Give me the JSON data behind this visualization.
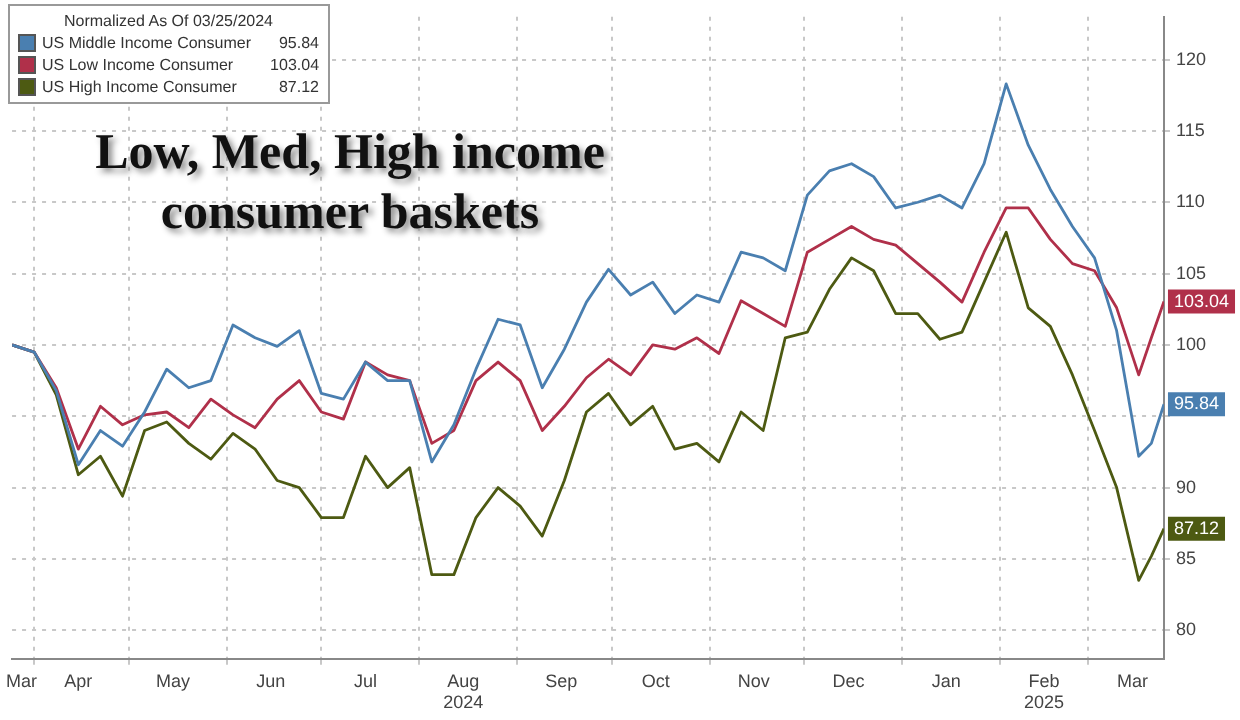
{
  "chart_data": {
    "type": "line",
    "title": "Low, Med, High income consumer baskets",
    "legend_title": "Normalized As Of 03/25/2024",
    "x": [
      "2024-03-25",
      "2024-04-01",
      "2024-04-08",
      "2024-04-15",
      "2024-04-22",
      "2024-04-29",
      "2024-05-06",
      "2024-05-13",
      "2024-05-20",
      "2024-05-27",
      "2024-06-03",
      "2024-06-10",
      "2024-06-17",
      "2024-06-24",
      "2024-07-01",
      "2024-07-08",
      "2024-07-15",
      "2024-07-22",
      "2024-07-29",
      "2024-08-05",
      "2024-08-12",
      "2024-08-19",
      "2024-08-26",
      "2024-09-02",
      "2024-09-09",
      "2024-09-16",
      "2024-09-23",
      "2024-09-30",
      "2024-10-07",
      "2024-10-14",
      "2024-10-21",
      "2024-10-28",
      "2024-11-04",
      "2024-11-11",
      "2024-11-18",
      "2024-11-25",
      "2024-12-02",
      "2024-12-09",
      "2024-12-16",
      "2024-12-23",
      "2024-12-30",
      "2025-01-06",
      "2025-01-13",
      "2025-01-20",
      "2025-01-27",
      "2025-02-03",
      "2025-02-10",
      "2025-02-17",
      "2025-02-24",
      "2025-03-03",
      "2025-03-10",
      "2025-03-17",
      "2025-03-21",
      "2025-03-25"
    ],
    "series": [
      {
        "name": "US Middle Income Consumer",
        "color": "#4a7fb0",
        "values": [
          100,
          99.5,
          96.8,
          91.6,
          94,
          92.9,
          95.3,
          98.3,
          97,
          97.5,
          101.4,
          100.5,
          99.9,
          101,
          96.6,
          96.2,
          98.8,
          97.5,
          97.5,
          91.8,
          94.4,
          98.3,
          101.8,
          101.4,
          97,
          99.7,
          103,
          105.3,
          103.5,
          104.4,
          102.2,
          103.5,
          103,
          106.5,
          106.1,
          105.2,
          110.5,
          112.2,
          112.7,
          111.8,
          109.6,
          110,
          110.5,
          109.6,
          112.7,
          118.3,
          114,
          110.9,
          108.3,
          106.1,
          101,
          92.2,
          93.1,
          95.84
        ],
        "value_labels": [
          null,
          null,
          null,
          null,
          null,
          null,
          null,
          null,
          null,
          null,
          null,
          null,
          null,
          null,
          null,
          null,
          null,
          null,
          null,
          null,
          null,
          null,
          null,
          null,
          null,
          null,
          null,
          null,
          null,
          null,
          null,
          null,
          null,
          null,
          null,
          null,
          null,
          null,
          null,
          null,
          null,
          null,
          null,
          null,
          null,
          null,
          null,
          null,
          null,
          null,
          null,
          null,
          null,
          "95.84"
        ]
      },
      {
        "name": "US Low Income Consumer",
        "color": "#b0304a",
        "values": [
          100,
          99.5,
          97,
          92.7,
          95.7,
          94.4,
          95.1,
          95.3,
          94.2,
          96.2,
          95.1,
          94.2,
          96.2,
          97.5,
          95.3,
          94.8,
          98.8,
          97.9,
          97.5,
          93.1,
          94,
          97.5,
          98.8,
          97.5,
          94,
          95.7,
          97.7,
          99,
          97.9,
          100,
          99.7,
          100.5,
          99.4,
          103.1,
          102.2,
          101.3,
          106.5,
          107.4,
          108.3,
          107.4,
          107,
          105.7,
          104.4,
          103,
          106.5,
          109.6,
          109.6,
          107.4,
          105.7,
          105.2,
          102.6,
          97.9,
          100.5,
          103.04
        ],
        "value_labels": [
          null,
          null,
          null,
          null,
          null,
          null,
          null,
          null,
          null,
          null,
          null,
          null,
          null,
          null,
          null,
          null,
          null,
          null,
          null,
          null,
          null,
          null,
          null,
          null,
          null,
          null,
          null,
          null,
          null,
          null,
          null,
          null,
          null,
          null,
          null,
          null,
          null,
          null,
          null,
          null,
          null,
          null,
          null,
          null,
          null,
          null,
          null,
          null,
          null,
          null,
          null,
          null,
          null,
          "103.04"
        ]
      },
      {
        "name": "US High Income Consumer",
        "color": "#4d5a12",
        "values": [
          100,
          99.5,
          96.5,
          90.9,
          92.2,
          89.4,
          94,
          94.6,
          93.1,
          92,
          93.8,
          92.7,
          90.5,
          90,
          87.9,
          87.9,
          92.2,
          90,
          91.4,
          83.9,
          83.9,
          87.9,
          90,
          88.7,
          86.6,
          90.5,
          95.3,
          96.6,
          94.4,
          95.7,
          92.7,
          93.1,
          91.8,
          95.3,
          94,
          100.5,
          100.9,
          103.9,
          106.1,
          105.2,
          102.2,
          102.2,
          100.4,
          100.9,
          104.4,
          107.9,
          102.6,
          101.3,
          97.9,
          94,
          90,
          83.5,
          85.2,
          87.12
        ],
        "value_labels": [
          null,
          null,
          null,
          null,
          null,
          null,
          null,
          null,
          null,
          null,
          null,
          null,
          null,
          null,
          null,
          null,
          null,
          null,
          null,
          null,
          null,
          null,
          null,
          null,
          null,
          null,
          null,
          null,
          null,
          null,
          null,
          null,
          null,
          null,
          null,
          null,
          null,
          null,
          null,
          null,
          null,
          null,
          null,
          null,
          null,
          null,
          null,
          null,
          null,
          null,
          null,
          null,
          null,
          "87.12"
        ]
      }
    ],
    "xlim": [
      "2024-03-25",
      "2025-03-25"
    ],
    "xticks": [
      {
        "value": "2024-03-28",
        "label": "Mar"
      },
      {
        "value": "2024-04-01",
        "label": null
      },
      {
        "value": "2024-04-15",
        "label": "Apr"
      },
      {
        "value": "2024-05-01",
        "label": null
      },
      {
        "value": "2024-05-15",
        "label": "May"
      },
      {
        "value": "2024-06-01",
        "label": null
      },
      {
        "value": "2024-06-15",
        "label": "Jun"
      },
      {
        "value": "2024-07-01",
        "label": null
      },
      {
        "value": "2024-07-15",
        "label": "Jul"
      },
      {
        "value": "2024-08-01",
        "label": null
      },
      {
        "value": "2024-08-15",
        "label": "Aug\n2024"
      },
      {
        "value": "2024-09-01",
        "label": null
      },
      {
        "value": "2024-09-15",
        "label": "Sep"
      },
      {
        "value": "2024-10-01",
        "label": null
      },
      {
        "value": "2024-10-15",
        "label": "Oct"
      },
      {
        "value": "2024-11-01",
        "label": null
      },
      {
        "value": "2024-11-15",
        "label": "Nov"
      },
      {
        "value": "2024-12-01",
        "label": null
      },
      {
        "value": "2024-12-15",
        "label": "Dec"
      },
      {
        "value": "2025-01-01",
        "label": null
      },
      {
        "value": "2025-01-15",
        "label": "Jan"
      },
      {
        "value": "2025-02-01",
        "label": null
      },
      {
        "value": "2025-02-15",
        "label": "Feb\n2025"
      },
      {
        "value": "2025-03-01",
        "label": null
      },
      {
        "value": "2025-03-15",
        "label": "Mar"
      }
    ],
    "ylim": [
      78,
      123
    ],
    "yticks": [
      80,
      85,
      90,
      {
        "value": 95,
        "label": null
      },
      100,
      105,
      110,
      115,
      120
    ],
    "grid": true,
    "legend": "top left",
    "marker": "none",
    "line_style": "solid"
  }
}
